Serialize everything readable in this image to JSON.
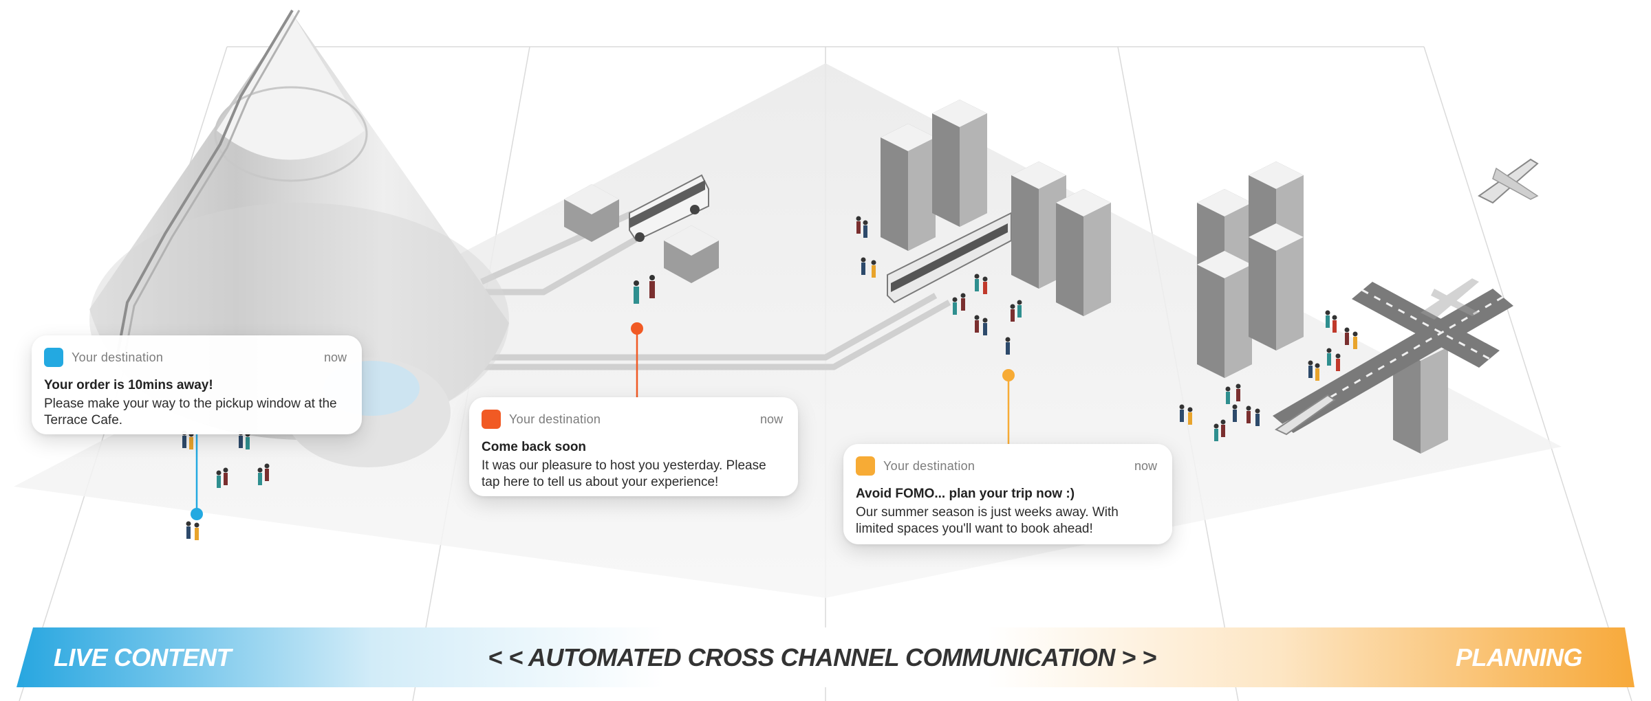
{
  "colors": {
    "live_accent": "#23a9e1",
    "mid_accent": "#f15a24",
    "planning_accent": "#f7ab35",
    "banner_left": "#27a6e0",
    "banner_right": "#f7a93a",
    "ground": "#ededed",
    "buildings": "#8a8a8a"
  },
  "notifications": [
    {
      "app_name": "Your destination",
      "time": "now",
      "title": "Your order is 10mins away!",
      "body": "Please make your way to the pickup window at the Terrace Cafe.",
      "icon_color": "#23a9e1",
      "icon": "app-icon-square"
    },
    {
      "app_name": "Your destination",
      "time": "now",
      "title": "Come back soon",
      "body": "It was our pleasure to host you yesterday. Please tap here to tell us about your experience!",
      "icon_color": "#f15a24",
      "icon": "app-icon-square"
    },
    {
      "app_name": "Your destination",
      "time": "now",
      "title": "Avoid FOMO... plan your trip now :)",
      "body": "Our summer season is just weeks away. With limited spaces you'll want to book ahead!",
      "icon_color": "#f7ab35",
      "icon": "app-icon-square"
    }
  ],
  "banner": {
    "left": "LIVE CONTENT",
    "center": "< < AUTOMATED CROSS CHANNEL COMMUNICATION > >",
    "right": "PLANNING"
  },
  "illustration_elements": [
    "cone-tower",
    "bus",
    "tram",
    "apartment-buildings",
    "runway",
    "airplane",
    "people"
  ]
}
